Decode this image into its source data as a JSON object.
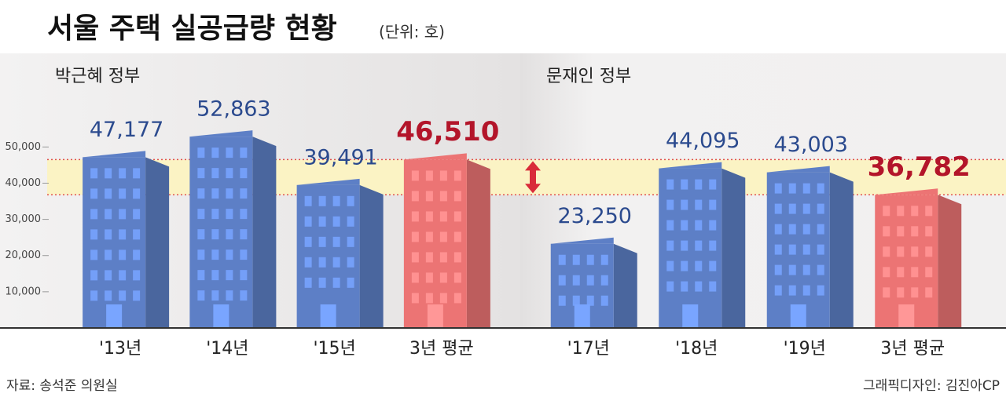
{
  "header": {
    "title": "서울 주택 실공급량 현황",
    "unit": "(단위: 호)"
  },
  "chart_data": [
    {
      "type": "bar",
      "title": "박근혜 정부",
      "categories": [
        "'13년",
        "'14년",
        "'15년",
        "3년 평균"
      ],
      "values": [
        47177,
        52863,
        39491,
        46510
      ],
      "value_labels": [
        "47,177",
        "52,863",
        "39,491",
        "46,510"
      ],
      "colors": [
        "#5d7fc6",
        "#5d7fc6",
        "#5d7fc6",
        "#ec7474"
      ],
      "value_label_colors": [
        "#2b4a8e",
        "#2b4a8e",
        "#2b4a8e",
        "#b3152a"
      ],
      "ylim": [
        0,
        75000
      ],
      "yticks": [
        {
          "value": 10000,
          "label": "10,000"
        },
        {
          "value": 20000,
          "label": "20,000"
        },
        {
          "value": 30000,
          "label": "30,000"
        },
        {
          "value": 40000,
          "label": "40,000"
        },
        {
          "value": 50000,
          "label": "50,000"
        }
      ]
    },
    {
      "type": "bar",
      "title": "문재인 정부",
      "categories": [
        "'17년",
        "'18년",
        "'19년",
        "3년 평균"
      ],
      "values": [
        23250,
        44095,
        43003,
        36782
      ],
      "value_labels": [
        "23,250",
        "44,095",
        "43,003",
        "36,782"
      ],
      "colors": [
        "#5d7fc6",
        "#5d7fc6",
        "#5d7fc6",
        "#ec7474"
      ],
      "value_label_colors": [
        "#2b4a8e",
        "#2b4a8e",
        "#2b4a8e",
        "#b3152a"
      ],
      "ylim": [
        0,
        75000
      ]
    }
  ],
  "footer": {
    "source": "자료: 송석준 의원실",
    "credit": "그래픽디자인: 김진아CP"
  }
}
